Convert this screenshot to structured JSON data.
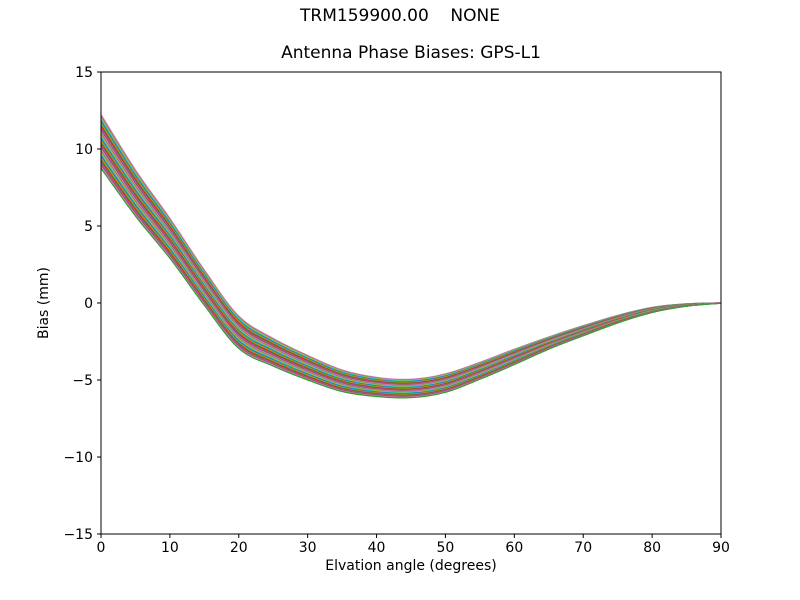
{
  "chart_data": {
    "type": "line",
    "suptitle": "TRM159900.00    NONE",
    "title": "Antenna Phase Biases: GPS-L1",
    "xlabel": "Elvation angle (degrees)",
    "ylabel": "Bias (mm)",
    "xlim": [
      0,
      90
    ],
    "ylim": [
      -15,
      15
    ],
    "x_ticks": [
      0,
      10,
      20,
      30,
      40,
      50,
      60,
      70,
      80,
      90
    ],
    "y_ticks": [
      -15,
      -10,
      -5,
      0,
      5,
      10,
      15
    ],
    "grid": false,
    "legend": "none",
    "background": "#ffffff",
    "spine_color": "#000000",
    "x": [
      0,
      5,
      10,
      15,
      20,
      25,
      30,
      35,
      40,
      45,
      50,
      55,
      60,
      65,
      70,
      75,
      80,
      85,
      90
    ],
    "center": [
      10.5,
      7.15,
      4.2,
      1.0,
      -1.9,
      -3.2,
      -4.2,
      -5.05,
      -5.45,
      -5.55,
      -5.2,
      -4.4,
      -3.5,
      -2.6,
      -1.8,
      -1.05,
      -0.45,
      -0.13,
      0.0
    ],
    "half_spread": [
      1.75,
      1.5,
      1.3,
      1.15,
      1.05,
      0.9,
      0.8,
      0.7,
      0.62,
      0.6,
      0.6,
      0.55,
      0.5,
      0.4,
      0.33,
      0.25,
      0.17,
      0.08,
      0.01
    ],
    "series_rule": "value[j] = center[j] + frac * half_spread[j]",
    "series_count": 32,
    "series": [
      {
        "frac": 1.0,
        "color": "#e377c2"
      },
      {
        "frac": 0.935,
        "color": "#7f7f7f"
      },
      {
        "frac": 0.871,
        "color": "#bcbd22"
      },
      {
        "frac": 0.806,
        "color": "#17becf"
      },
      {
        "frac": 0.742,
        "color": "#1f77b4"
      },
      {
        "frac": 0.677,
        "color": "#ff7f0e"
      },
      {
        "frac": 0.613,
        "color": "#2ca02c"
      },
      {
        "frac": 0.548,
        "color": "#d62728"
      },
      {
        "frac": 0.484,
        "color": "#9467bd"
      },
      {
        "frac": 0.419,
        "color": "#8c564b"
      },
      {
        "frac": 0.355,
        "color": "#e377c2"
      },
      {
        "frac": 0.29,
        "color": "#7f7f7f"
      },
      {
        "frac": 0.226,
        "color": "#bcbd22"
      },
      {
        "frac": 0.161,
        "color": "#17becf"
      },
      {
        "frac": 0.097,
        "color": "#1f77b4"
      },
      {
        "frac": 0.032,
        "color": "#ff7f0e"
      },
      {
        "frac": -0.032,
        "color": "#2ca02c"
      },
      {
        "frac": -0.097,
        "color": "#d62728"
      },
      {
        "frac": -0.161,
        "color": "#9467bd"
      },
      {
        "frac": -0.226,
        "color": "#8c564b"
      },
      {
        "frac": -0.29,
        "color": "#e377c2"
      },
      {
        "frac": -0.355,
        "color": "#7f7f7f"
      },
      {
        "frac": -0.419,
        "color": "#bcbd22"
      },
      {
        "frac": -0.484,
        "color": "#17becf"
      },
      {
        "frac": -0.548,
        "color": "#1f77b4"
      },
      {
        "frac": -0.613,
        "color": "#ff7f0e"
      },
      {
        "frac": -0.677,
        "color": "#2ca02c"
      },
      {
        "frac": -0.742,
        "color": "#d62728"
      },
      {
        "frac": -0.806,
        "color": "#9467bd"
      },
      {
        "frac": -0.871,
        "color": "#8c564b"
      },
      {
        "frac": -0.935,
        "color": "#e377c2"
      },
      {
        "frac": -1.0,
        "color": "#2ca02c"
      }
    ]
  }
}
